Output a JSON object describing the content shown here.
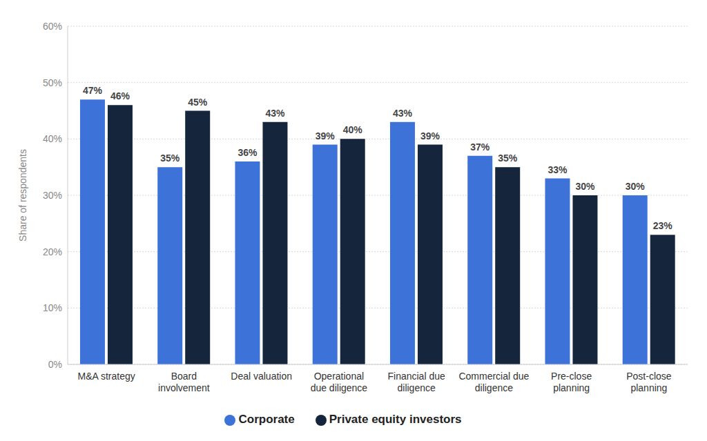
{
  "chart_data": {
    "type": "bar",
    "y_label": "Share of respondents",
    "categories": [
      "M&A strategy",
      "Board involvement",
      "Deal valuation",
      "Operational due diligence",
      "Financial due diligence",
      "Commercial due diligence",
      "Pre-close planning",
      "Post-close planning"
    ],
    "series": [
      {
        "name": "Corporate",
        "color": "#3d73d8",
        "values": [
          47,
          35,
          36,
          39,
          43,
          37,
          33,
          30
        ],
        "value_labels": [
          "47%",
          "35%",
          "36%",
          "39%",
          "43%",
          "37%",
          "33%",
          "30%"
        ]
      },
      {
        "name": "Private equity investors",
        "color": "#15253c",
        "values": [
          46,
          45,
          43,
          40,
          39,
          35,
          30,
          23
        ],
        "value_labels": [
          "46%",
          "45%",
          "43%",
          "40%",
          "39%",
          "35%",
          "30%",
          "23%"
        ]
      }
    ],
    "ylim": [
      0,
      60
    ],
    "yticks": [
      {
        "value": 0,
        "label": "0%"
      },
      {
        "value": 10,
        "label": "10%"
      },
      {
        "value": 20,
        "label": "20%"
      },
      {
        "value": 30,
        "label": "30%"
      },
      {
        "value": 40,
        "label": "40%"
      },
      {
        "value": 50,
        "label": "50%"
      },
      {
        "value": 60,
        "label": "60%"
      }
    ],
    "grid": true,
    "legend": "bottom",
    "data_labels": true
  }
}
